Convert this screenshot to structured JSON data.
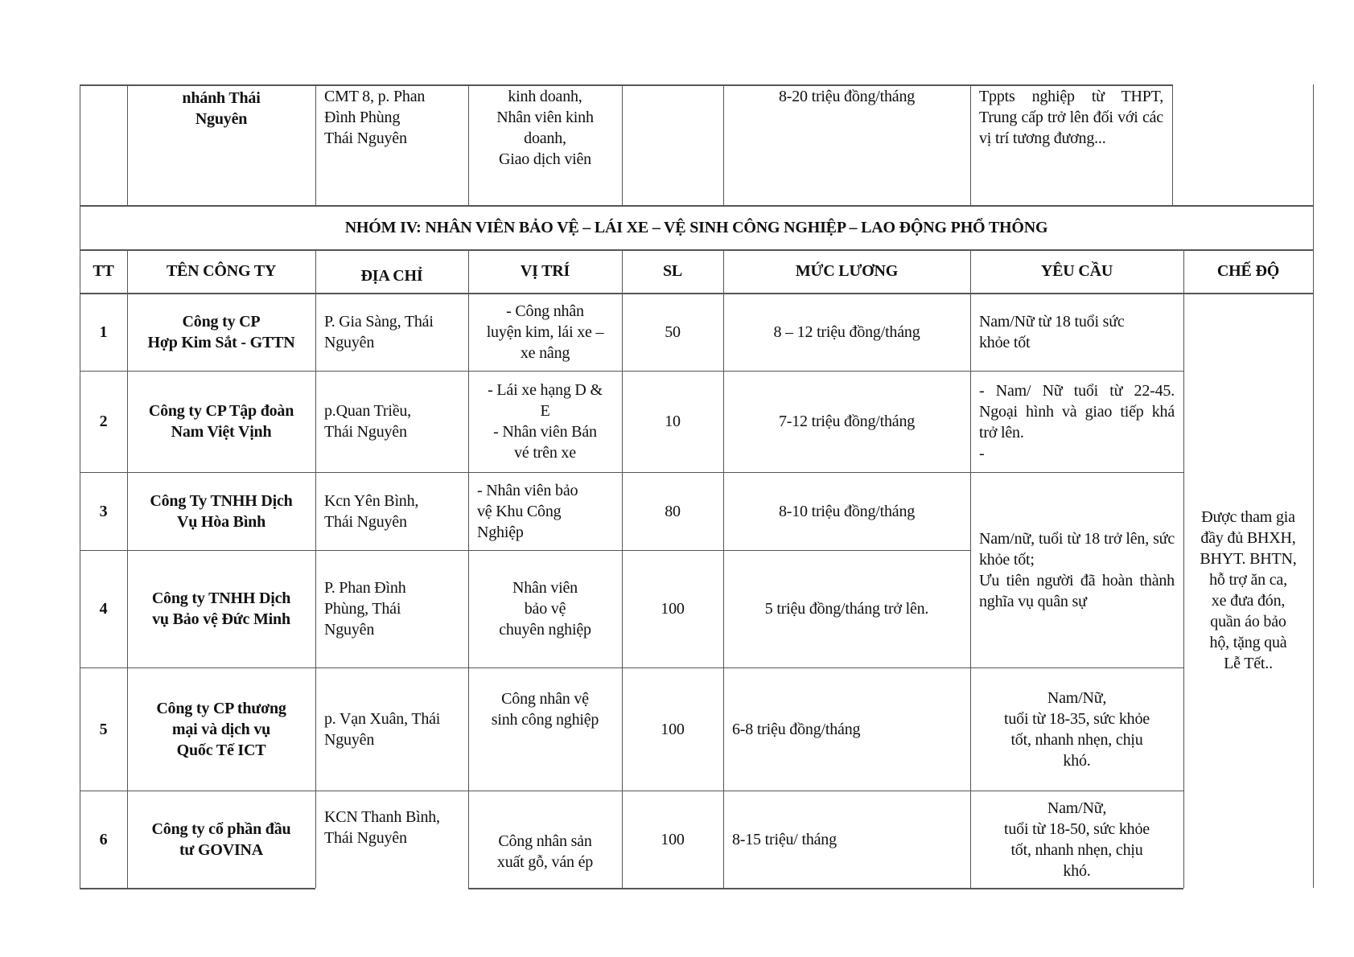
{
  "continued_row": {
    "company": "nhánh Thái\nNguyên",
    "address": "CMT 8, p. Phan\nĐình Phùng\nThái Nguyên",
    "position": "kinh doanh,\nNhân viên kinh\ndoanh,\nGiao dịch viên",
    "quantity": "",
    "salary": "8-20 triệu đồng/tháng",
    "requirement": "Tppts nghiệp từ THPT, Trung cấp trở lên đối với các vị trí tương đương..."
  },
  "group_title": "NHÓM IV: NHÂN VIÊN BẢO VỆ – LÁI XE – VỆ SINH CÔNG NGHIỆP – LAO ĐỘNG PHỔ THÔNG",
  "headers": [
    "TT",
    "TÊN CÔNG TY",
    "ĐỊA CHỈ",
    "VỊ TRÍ",
    "SL",
    "MỨC LƯƠNG",
    "YÊU CẦU",
    "CHẾ ĐỘ"
  ],
  "rows": [
    {
      "tt": "1",
      "company": "Công ty CP\nHợp Kim Sắt - GTTN",
      "address": "P. Gia Sàng, Thái Nguyên",
      "position": "- Công nhân\nluyện kim, lái xe –\nxe nâng",
      "quantity": "50",
      "salary": "8 – 12 triệu đồng/tháng",
      "requirement": "Nam/Nữ từ 18 tuổi sức\nkhỏe tốt"
    },
    {
      "tt": "2",
      "company": "Công ty CP Tập đoàn\nNam Việt Vịnh",
      "address": "p.Quan Triều,\nThái Nguyên",
      "position": "- Lái xe hạng D &\nE\n- Nhân viên Bán\nvé trên xe",
      "quantity": "10",
      "salary": "7-12 triệu đồng/tháng",
      "requirement": "- Nam/ Nữ tuổi từ 22-45. Ngoại hình và giao tiếp khá trở lên.\n-"
    },
    {
      "tt": "3",
      "company": "Công Ty TNHH Dịch\nVụ Hòa Bình",
      "address": "Kcn Yên Bình,\nThái Nguyên",
      "position": "- Nhân viên bảo\nvệ Khu Công\nNghiệp",
      "quantity": "80",
      "salary": "8-10 triệu đồng/tháng",
      "requirement": ""
    },
    {
      "tt": "4",
      "company": "Công ty TNHH Dịch\nvụ Bảo vệ Đức Minh",
      "address": "P. Phan Đình\nPhùng, Thái\nNguyên",
      "position": "Nhân viên\nbảo vệ\nchuyên nghiệp",
      "quantity": "100",
      "salary": "5 triệu đồng/tháng trở lên.",
      "requirement": ""
    },
    {
      "tt": "5",
      "company": "Công ty CP thương\nmại và dịch vụ\nQuốc Tế ICT",
      "address": "p. Vạn Xuân, Thái\nNguyên",
      "position": "Công nhân vệ\nsinh công nghiệp",
      "quantity": "100",
      "salary": "6-8 triệu đồng/tháng",
      "requirement": "Nam/Nữ,\ntuổi từ 18-35, sức khỏe\ntốt, nhanh nhẹn, chịu\nkhó."
    },
    {
      "tt": "6",
      "company": "Công ty cổ phần đầu\ntư GOVINA",
      "address": "KCN Thanh Bình,\nThái Nguyên",
      "position": "Công nhân sản\nxuất gỗ, ván ép",
      "quantity": "100",
      "salary": "8-15 triệu/ tháng",
      "requirement": "Nam/Nữ,\ntuổi từ 18-50, sức khỏe\ntốt, nhanh nhẹn, chịu\nkhó."
    }
  ],
  "shared_requirement_rows_3_4": "Nam/nữ, tuổi từ 18 trở lên, sức khỏe tốt;\nƯu tiên người đã hoàn thành nghĩa vụ quân sự",
  "shared_benefits": "Được tham gia\nđầy đủ BHXH,\nBHYT. BHTN,\nhỗ trợ ăn ca,\nxe đưa đón,\nquần áo bảo\nhộ, tặng quà\nLễ Tết.."
}
